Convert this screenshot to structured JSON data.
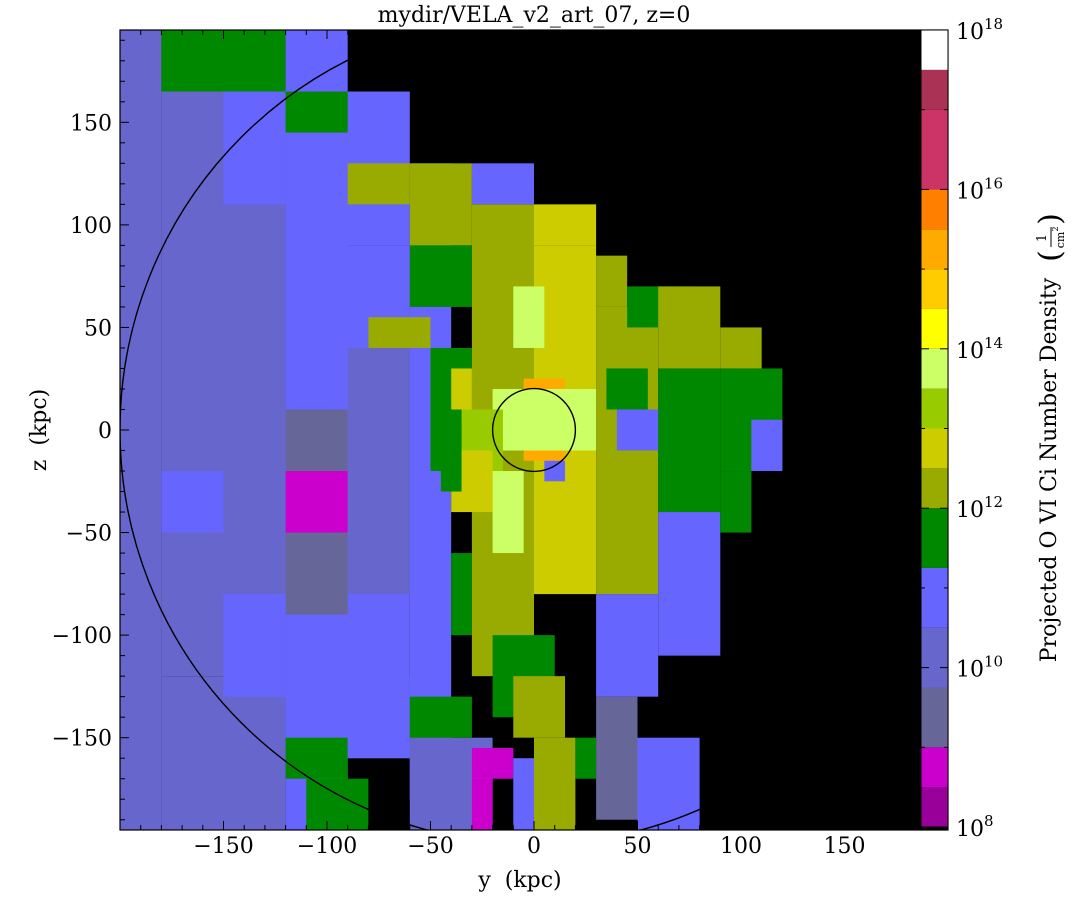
{
  "chart_data": {
    "type": "heatmap",
    "title": "mydir/VELA_v2_art_07, z=0",
    "xlabel": "y  (kpc)",
    "ylabel": "z  (kpc)",
    "xlim": [
      -200,
      200
    ],
    "ylim": [
      -195,
      195
    ],
    "x_ticks": [
      -150,
      -100,
      -50,
      0,
      50,
      100,
      150
    ],
    "y_ticks": [
      -150,
      -100,
      -50,
      0,
      50,
      100,
      150
    ],
    "x_tick_labels": [
      "−150",
      "−100",
      "−50",
      "0",
      "50",
      "100",
      "150"
    ],
    "y_tick_labels": [
      "−150",
      "−100",
      "−50",
      "0",
      "50",
      "100",
      "150"
    ],
    "colorbar": {
      "label": "Projected O VI Ci Number Density",
      "unit_numerator": "1",
      "unit_denominator": "cm",
      "unit_exponent": "2",
      "scale": "log",
      "range_log10": [
        8,
        18
      ],
      "tick_labels": [
        {
          "base": "10",
          "exp": "8",
          "log10": 8
        },
        {
          "base": "10",
          "exp": "10",
          "log10": 10
        },
        {
          "base": "10",
          "exp": "12",
          "log10": 12
        },
        {
          "base": "10",
          "exp": "14",
          "log10": 14
        },
        {
          "base": "10",
          "exp": "16",
          "log10": 16
        },
        {
          "base": "10",
          "exp": "18",
          "log10": 18
        }
      ],
      "bands": [
        {
          "from": 8.0,
          "to": 8.5,
          "color": "#990099"
        },
        {
          "from": 8.5,
          "to": 9.0,
          "color": "#cc00cc"
        },
        {
          "from": 9.0,
          "to": 9.75,
          "color": "#666699"
        },
        {
          "from": 9.75,
          "to": 10.5,
          "color": "#6666cc"
        },
        {
          "from": 10.5,
          "to": 11.25,
          "color": "#6666ff"
        },
        {
          "from": 11.25,
          "to": 12.0,
          "color": "#008800"
        },
        {
          "from": 12.0,
          "to": 12.5,
          "color": "#99aa00"
        },
        {
          "from": 12.5,
          "to": 13.0,
          "color": "#cccc00"
        },
        {
          "from": 13.0,
          "to": 13.5,
          "color": "#99cc00"
        },
        {
          "from": 13.5,
          "to": 14.0,
          "color": "#ccff66"
        },
        {
          "from": 14.0,
          "to": 14.5,
          "color": "#ffff00"
        },
        {
          "from": 14.5,
          "to": 15.0,
          "color": "#ffcc00"
        },
        {
          "from": 15.0,
          "to": 15.5,
          "color": "#ffaa00"
        },
        {
          "from": 15.5,
          "to": 16.0,
          "color": "#ff7f00"
        },
        {
          "from": 16.0,
          "to": 17.0,
          "color": "#cc3366"
        },
        {
          "from": 17.0,
          "to": 17.5,
          "color": "#aa3355"
        },
        {
          "from": 17.5,
          "to": 18.0,
          "color": "#ffffff"
        }
      ]
    },
    "background_color": "#000000",
    "circles": [
      {
        "center": [
          0,
          0
        ],
        "radius": 200,
        "color": "#000000"
      },
      {
        "center": [
          0,
          0
        ],
        "radius": 20,
        "color": "#000000"
      }
    ],
    "blocks": [
      {
        "x": [
          -200,
          -180
        ],
        "y": [
          -195,
          195
        ],
        "v": 10.1
      },
      {
        "x": [
          -180,
          -120
        ],
        "y": [
          -120,
          195
        ],
        "v": 10.1
      },
      {
        "x": [
          -180,
          -120
        ],
        "y": [
          -195,
          -120
        ],
        "v": 10.1
      },
      {
        "x": [
          -180,
          -120
        ],
        "y": [
          165,
          195
        ],
        "v": 11.5
      },
      {
        "x": [
          -180,
          -150
        ],
        "y": [
          -50,
          -20
        ],
        "v": 10.8
      },
      {
        "x": [
          -150,
          -120
        ],
        "y": [
          -80,
          -30
        ],
        "v": 10.1
      },
      {
        "x": [
          -150,
          -120
        ],
        "y": [
          -130,
          -80
        ],
        "v": 10.8
      },
      {
        "x": [
          -120,
          -90
        ],
        "y": [
          -195,
          195
        ],
        "v": 10.8
      },
      {
        "x": [
          -150,
          -120
        ],
        "y": [
          110,
          165
        ],
        "v": 10.8
      },
      {
        "x": [
          -120,
          -60
        ],
        "y": [
          90,
          165
        ],
        "v": 10.8
      },
      {
        "x": [
          -120,
          -60
        ],
        "y": [
          -160,
          90
        ],
        "v": 10.8
      },
      {
        "x": [
          -120,
          -90
        ],
        "y": [
          -30,
          10
        ],
        "v": 9.4
      },
      {
        "x": [
          -120,
          -90
        ],
        "y": [
          -90,
          -50
        ],
        "v": 9.4
      },
      {
        "x": [
          -120,
          -90
        ],
        "y": [
          -50,
          -20
        ],
        "v": 8.7
      },
      {
        "x": [
          -90,
          -60
        ],
        "y": [
          -80,
          40
        ],
        "v": 10.1
      },
      {
        "x": [
          -90,
          -60
        ],
        "y": [
          40,
          90
        ],
        "v": 10.8
      },
      {
        "x": [
          -120,
          -90
        ],
        "y": [
          145,
          165
        ],
        "v": 11.5
      },
      {
        "x": [
          -120,
          -90
        ],
        "y": [
          -170,
          -150
        ],
        "v": 11.5
      },
      {
        "x": [
          -110,
          -80
        ],
        "y": [
          -195,
          -170
        ],
        "v": 11.5
      },
      {
        "x": [
          -90,
          -60
        ],
        "y": [
          -160,
          -120
        ],
        "v": 10.8
      },
      {
        "x": [
          -60,
          -40
        ],
        "y": [
          -180,
          130
        ],
        "v": 10.8
      },
      {
        "x": [
          -60,
          -20
        ],
        "y": [
          -195,
          -150
        ],
        "v": 10.1
      },
      {
        "x": [
          -60,
          -30
        ],
        "y": [
          -150,
          -130
        ],
        "v": 11.5
      },
      {
        "x": [
          -90,
          -60
        ],
        "y": [
          110,
          130
        ],
        "v": 12.2
      },
      {
        "x": [
          -80,
          -50
        ],
        "y": [
          40,
          55
        ],
        "v": 12.2
      },
      {
        "x": [
          -60,
          -30
        ],
        "y": [
          90,
          130
        ],
        "v": 12.2
      },
      {
        "x": [
          -60,
          -30
        ],
        "y": [
          60,
          90
        ],
        "v": 11.5
      },
      {
        "x": [
          -50,
          -30
        ],
        "y": [
          -20,
          40
        ],
        "v": 11.5
      },
      {
        "x": [
          -40,
          -30
        ],
        "y": [
          -100,
          -60
        ],
        "v": 11.5
      },
      {
        "x": [
          -30,
          0
        ],
        "y": [
          -120,
          110
        ],
        "v": 12.2
      },
      {
        "x": [
          -30,
          0
        ],
        "y": [
          110,
          130
        ],
        "v": 10.8
      },
      {
        "x": [
          0,
          30
        ],
        "y": [
          -80,
          90
        ],
        "v": 12.7
      },
      {
        "x": [
          0,
          30
        ],
        "y": [
          90,
          110
        ],
        "v": 12.7
      },
      {
        "x": [
          -20,
          10
        ],
        "y": [
          -140,
          -100
        ],
        "v": 11.5
      },
      {
        "x": [
          -30,
          -20
        ],
        "y": [
          -195,
          -170
        ],
        "v": 8.7
      },
      {
        "x": [
          -30,
          -10
        ],
        "y": [
          -170,
          -155
        ],
        "v": 8.7
      },
      {
        "x": [
          -10,
          0
        ],
        "y": [
          -195,
          -160
        ],
        "v": 10.8
      },
      {
        "x": [
          0,
          20
        ],
        "y": [
          -195,
          -150
        ],
        "v": 12.2
      },
      {
        "x": [
          20,
          30
        ],
        "y": [
          -170,
          -150
        ],
        "v": 11.5
      },
      {
        "x": [
          -10,
          15
        ],
        "y": [
          -150,
          -120
        ],
        "v": 12.2
      },
      {
        "x": [
          30,
          50
        ],
        "y": [
          -190,
          -130
        ],
        "v": 9.4
      },
      {
        "x": [
          30,
          60
        ],
        "y": [
          -130,
          -80
        ],
        "v": 10.8
      },
      {
        "x": [
          30,
          60
        ],
        "y": [
          -80,
          60
        ],
        "v": 12.2
      },
      {
        "x": [
          30,
          45
        ],
        "y": [
          60,
          85
        ],
        "v": 12.2
      },
      {
        "x": [
          45,
          75
        ],
        "y": [
          50,
          70
        ],
        "v": 11.5
      },
      {
        "x": [
          60,
          90
        ],
        "y": [
          -40,
          30
        ],
        "v": 11.5
      },
      {
        "x": [
          60,
          90
        ],
        "y": [
          -110,
          -40
        ],
        "v": 10.8
      },
      {
        "x": [
          50,
          80
        ],
        "y": [
          -195,
          -150
        ],
        "v": 10.8
      },
      {
        "x": [
          90,
          120
        ],
        "y": [
          -20,
          30
        ],
        "v": 11.5
      },
      {
        "x": [
          90,
          105
        ],
        "y": [
          -50,
          -20
        ],
        "v": 11.5
      },
      {
        "x": [
          60,
          90
        ],
        "y": [
          30,
          70
        ],
        "v": 12.2
      },
      {
        "x": [
          90,
          110
        ],
        "y": [
          30,
          50
        ],
        "v": 12.2
      },
      {
        "x": [
          105,
          120
        ],
        "y": [
          -20,
          5
        ],
        "v": 10.8
      },
      {
        "x": [
          35,
          55
        ],
        "y": [
          10,
          30
        ],
        "v": 11.5
      },
      {
        "x": [
          40,
          60
        ],
        "y": [
          -10,
          10
        ],
        "v": 10.8
      },
      {
        "x": [
          -5,
          15
        ],
        "y": [
          -15,
          25
        ],
        "v": 15.0
      },
      {
        "x": [
          -20,
          30
        ],
        "y": [
          -10,
          20
        ],
        "v": 13.5
      },
      {
        "x": [
          -35,
          -15
        ],
        "y": [
          -20,
          10
        ],
        "v": 13.2
      },
      {
        "x": [
          -40,
          -20
        ],
        "y": [
          -40,
          -10
        ],
        "v": 12.7
      },
      {
        "x": [
          -20,
          -5
        ],
        "y": [
          -60,
          -20
        ],
        "v": 13.5
      },
      {
        "x": [
          -10,
          5
        ],
        "y": [
          40,
          70
        ],
        "v": 13.5
      },
      {
        "x": [
          -45,
          -35
        ],
        "y": [
          -30,
          0
        ],
        "v": 11.5
      },
      {
        "x": [
          -40,
          -30
        ],
        "y": [
          10,
          30
        ],
        "v": 12.7
      },
      {
        "x": [
          5,
          15
        ],
        "y": [
          -25,
          -15
        ],
        "v": 10.8
      }
    ]
  }
}
